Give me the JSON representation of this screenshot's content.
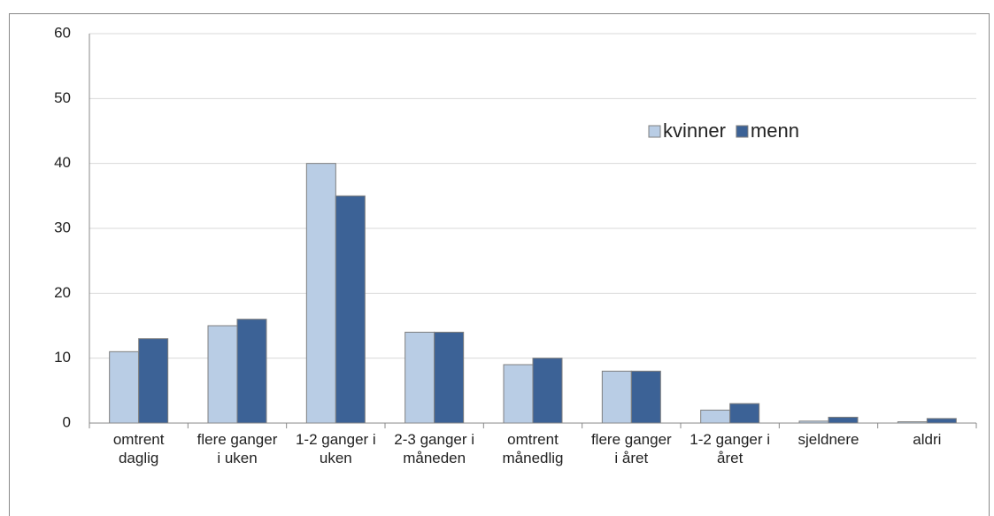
{
  "chart_data": {
    "type": "bar",
    "categories": [
      "omtrent daglig",
      "flere ganger i uken",
      "1-2 ganger i uken",
      "2-3 ganger i måneden",
      "omtrent månedlig",
      "flere ganger i året",
      "1-2 ganger i året",
      "sjeldnere",
      "aldri"
    ],
    "series": [
      {
        "name": "kvinner",
        "color": "#b9cde5",
        "values": [
          11,
          15,
          40,
          14,
          9,
          8,
          2,
          0.3,
          0.2
        ]
      },
      {
        "name": "menn",
        "color": "#3c6296",
        "values": [
          13,
          16,
          35,
          14,
          10,
          8,
          3,
          0.9,
          0.7
        ]
      }
    ],
    "ylim": [
      0,
      60
    ],
    "yticks": [
      0,
      10,
      20,
      30,
      40,
      50,
      60
    ],
    "grid": true,
    "legend": "top-right"
  }
}
